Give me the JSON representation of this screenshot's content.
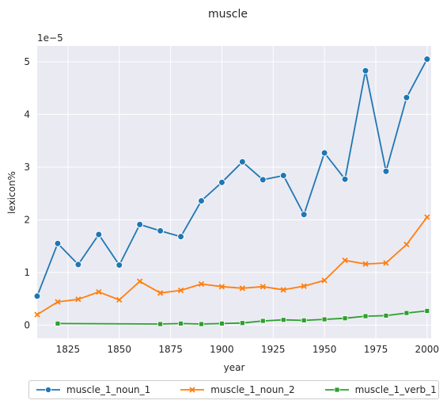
{
  "chart_data": {
    "type": "line",
    "title": "muscle",
    "xlabel": "year",
    "ylabel": "lexicon%",
    "y_scale_label": "1e−5",
    "xlim": [
      1810,
      2002
    ],
    "ylim": [
      -0.25,
      5.3
    ],
    "xticks": [
      "1825",
      "1850",
      "1875",
      "1900",
      "1925",
      "1950",
      "1975",
      "2000"
    ],
    "yticks": [
      "0",
      "1",
      "2",
      "3",
      "4",
      "5"
    ],
    "grid": true,
    "legend_position": "below",
    "series": [
      {
        "name": "muscle_1_noun_1",
        "color": "#1f77b4",
        "marker": "circle",
        "x": [
          1810,
          1820,
          1830,
          1840,
          1850,
          1860,
          1870,
          1880,
          1890,
          1900,
          1910,
          1920,
          1930,
          1940,
          1950,
          1960,
          1970,
          1980,
          1990,
          2000
        ],
        "y": [
          0.55,
          1.55,
          1.15,
          1.72,
          1.14,
          1.91,
          1.79,
          1.68,
          2.36,
          2.71,
          3.1,
          2.76,
          2.84,
          2.1,
          3.27,
          2.77,
          4.83,
          2.92,
          4.32,
          5.05
        ]
      },
      {
        "name": "muscle_1_noun_2",
        "color": "#ff7f0e",
        "marker": "x",
        "x": [
          1810,
          1820,
          1830,
          1840,
          1850,
          1860,
          1870,
          1880,
          1890,
          1900,
          1910,
          1920,
          1930,
          1940,
          1950,
          1960,
          1970,
          1980,
          1990,
          2000
        ],
        "y": [
          0.2,
          0.44,
          0.49,
          0.63,
          0.48,
          0.83,
          0.61,
          0.66,
          0.78,
          0.73,
          0.7,
          0.73,
          0.67,
          0.74,
          0.85,
          1.23,
          1.16,
          1.18,
          1.53,
          2.05
        ]
      },
      {
        "name": "muscle_1_verb_1",
        "color": "#2ca02c",
        "marker": "square",
        "x": [
          1820,
          1870,
          1880,
          1890,
          1900,
          1910,
          1920,
          1930,
          1940,
          1950,
          1960,
          1970,
          1980,
          1990,
          2000
        ],
        "y": [
          0.03,
          0.02,
          0.03,
          0.02,
          0.03,
          0.04,
          0.08,
          0.1,
          0.09,
          0.11,
          0.13,
          0.17,
          0.18,
          0.23,
          0.27
        ]
      }
    ]
  }
}
